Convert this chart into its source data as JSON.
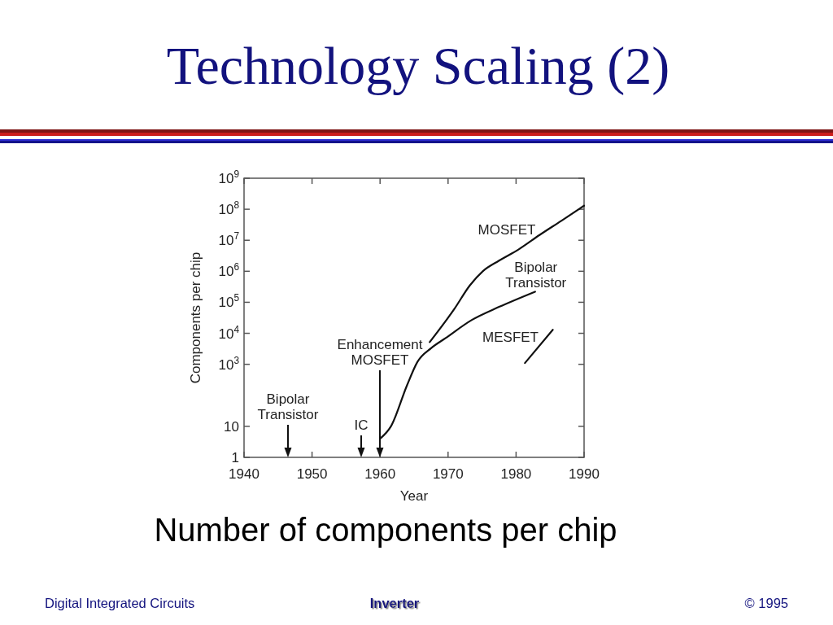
{
  "chart_data": {
    "type": "line",
    "title": "Technology Scaling (2)",
    "xlabel": "Year",
    "ylabel": "Components per chip",
    "log": "y",
    "xlim": [
      1940,
      1990
    ],
    "xticks": [
      1940,
      1950,
      1960,
      1970,
      1980,
      1990
    ],
    "ylim": [
      1,
      1000000000
    ],
    "yticks": [
      1,
      10,
      {
        "value": 1000,
        "label": "10$^{3}$"
      },
      {
        "value": 10000,
        "label": "10$^{4}$"
      },
      {
        "value": 100000,
        "label": "10$^{5}$"
      },
      {
        "value": 1000000,
        "label": "10$^{6}$"
      },
      {
        "value": 10000000,
        "label": "10$^{7}$"
      },
      {
        "value": 100000000,
        "label": "10$^{8}$"
      },
      {
        "value": 1000000000,
        "label": "10$^{9}$"
      }
    ],
    "series": [
      {
        "name": "MOSFET",
        "color": "#111111",
        "x": [
          1967.3,
          1970.9,
          1973.2,
          1975.1,
          1977.5,
          1980.4,
          1983.5,
          1986.7,
          1990
        ],
        "values": [
          5200,
          60000,
          350000,
          1000000,
          2200000,
          5100000,
          15000000,
          43000000,
          130000000
        ]
      },
      {
        "name": "Bipolar Transistor",
        "color": "#111111",
        "x": [
          1960,
          1961.6,
          1964,
          1965.5,
          1967.5,
          1969.6,
          1973.5,
          1977.5,
          1982.8
        ],
        "values": [
          4,
          10,
          220,
          1200,
          3300,
          6900,
          27000,
          71000,
          220000
        ]
      },
      {
        "name": "MESFET",
        "color": "#111111",
        "x": [
          1981.3,
          1985.4
        ],
        "values": [
          1100,
          13000
        ]
      }
    ],
    "annotations": [
      "Bipolar Transistor",
      "IC",
      "Enhancement MOSFET",
      "Number of components per chip",
      "Digital Integrated Circuits",
      "Inverter",
      "© 1995"
    ]
  }
}
